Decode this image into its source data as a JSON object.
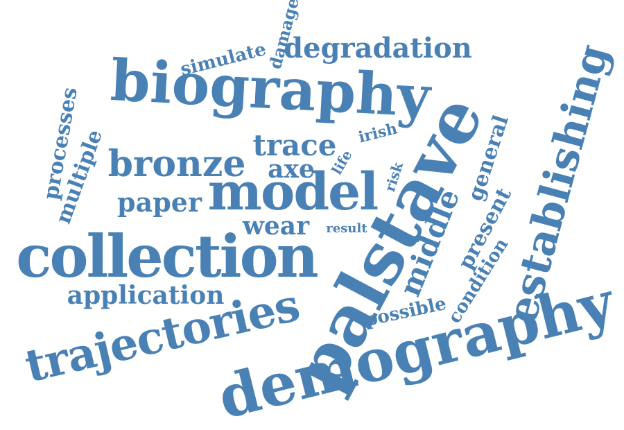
{
  "word_cloud": {
    "color": "#4a81b4",
    "background": "#ffffff",
    "words": [
      "biography",
      "palstave",
      "demography",
      "collection",
      "trajectories",
      "model",
      "establishing",
      "bronze",
      "degradation",
      "trace",
      "application",
      "middle",
      "paper",
      "wear",
      "axe",
      "multiple",
      "processes",
      "simulate",
      "damage",
      "present",
      "general",
      "possible",
      "condition",
      "irish",
      "life",
      "risk",
      "result"
    ]
  }
}
